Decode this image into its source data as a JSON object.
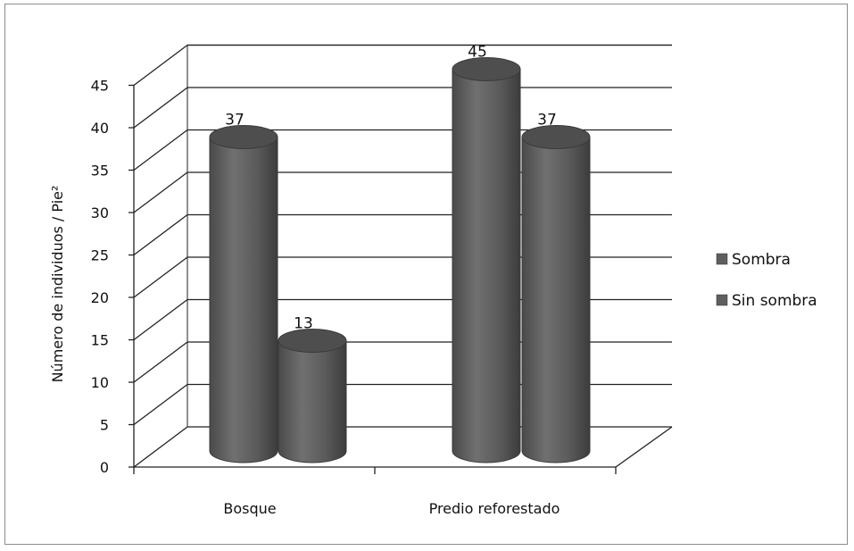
{
  "chart_data": {
    "type": "bar",
    "style": "3d-cylinder",
    "categories": [
      "Bosque",
      "Predio reforestado"
    ],
    "series": [
      {
        "name": "Sombra",
        "values": [
          37,
          45
        ],
        "color": "#5e5e5e"
      },
      {
        "name": "Sin sombra",
        "values": [
          13,
          37
        ],
        "color": "#5e5e5e"
      }
    ],
    "ylabel": "Número de individuos / Pie²",
    "xlabel": "",
    "ylim": [
      0,
      45
    ],
    "yticks": [
      0,
      5,
      10,
      15,
      20,
      25,
      30,
      35,
      40,
      45
    ],
    "grid": true,
    "legend_position": "right"
  }
}
